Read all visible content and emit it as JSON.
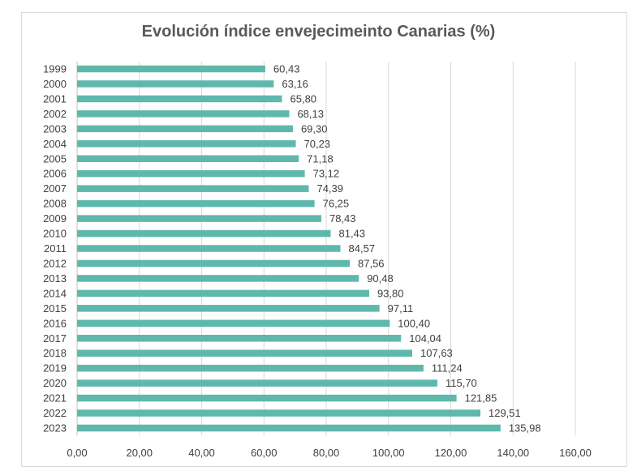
{
  "chart_data": {
    "type": "bar",
    "orientation": "horizontal",
    "title": "Evolución índice envejecimeinto Canarias (%)",
    "xlabel": "",
    "ylabel": "",
    "categories": [
      "1999",
      "2000",
      "2001",
      "2002",
      "2003",
      "2004",
      "2005",
      "2006",
      "2007",
      "2008",
      "2009",
      "2010",
      "2011",
      "2012",
      "2013",
      "2014",
      "2015",
      "2016",
      "2017",
      "2018",
      "2019",
      "2020",
      "2021",
      "2022",
      "2023"
    ],
    "values": [
      60.43,
      63.16,
      65.8,
      68.13,
      69.3,
      70.23,
      71.18,
      73.12,
      74.39,
      76.25,
      78.43,
      81.43,
      84.57,
      87.56,
      90.48,
      93.8,
      97.11,
      100.4,
      104.04,
      107.63,
      111.24,
      115.7,
      121.85,
      129.51,
      135.98
    ],
    "value_labels": [
      "60,43",
      "63,16",
      "65,80",
      "68,13",
      "69,30",
      "70,23",
      "71,18",
      "73,12",
      "74,39",
      "76,25",
      "78,43",
      "81,43",
      "84,57",
      "87,56",
      "90,48",
      "93,80",
      "97,11",
      "100,40",
      "104,04",
      "107,63",
      "111,24",
      "115,70",
      "121,85",
      "129,51",
      "135,98"
    ],
    "xlim": [
      0,
      160
    ],
    "x_ticks": [
      0,
      20,
      40,
      60,
      80,
      100,
      120,
      140,
      160
    ],
    "x_tick_labels": [
      "0,00",
      "20,00",
      "40,00",
      "60,00",
      "80,00",
      "100,00",
      "120,00",
      "140,00",
      "160,00"
    ],
    "grid": "vertical",
    "legend": "none",
    "bar_color": "#5fb8ac",
    "grid_color": "#d9d9d9",
    "text_color": "#404040"
  }
}
